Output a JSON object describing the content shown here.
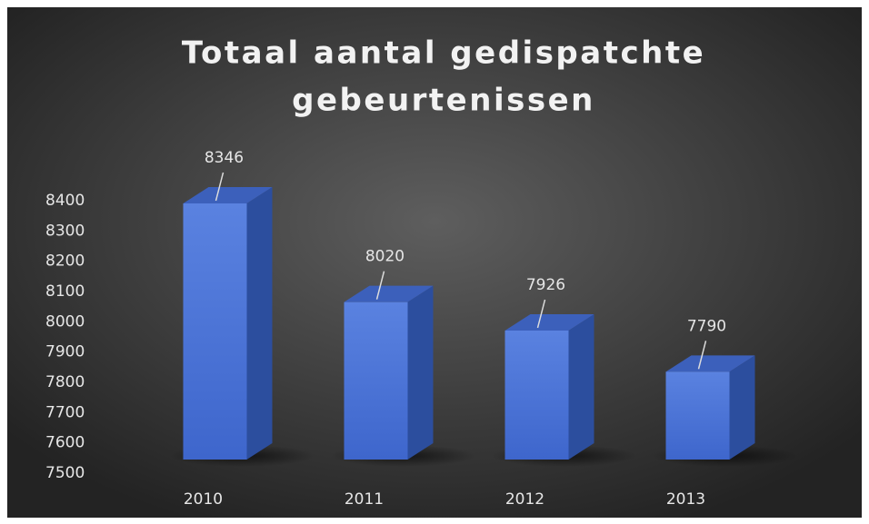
{
  "chart_data": {
    "type": "bar3d",
    "title": [
      "Totaal aantal gedispatchte",
      "gebeurtenissen"
    ],
    "categories": [
      "2010",
      "2011",
      "2012",
      "2013"
    ],
    "values": [
      8346,
      8020,
      7926,
      7790
    ],
    "color": "#4a73d8",
    "ylim": [
      7500,
      8400
    ],
    "yticks": [
      7500,
      7600,
      7700,
      7800,
      7900,
      8000,
      8100,
      8200,
      8300,
      8400
    ],
    "grid": false
  }
}
